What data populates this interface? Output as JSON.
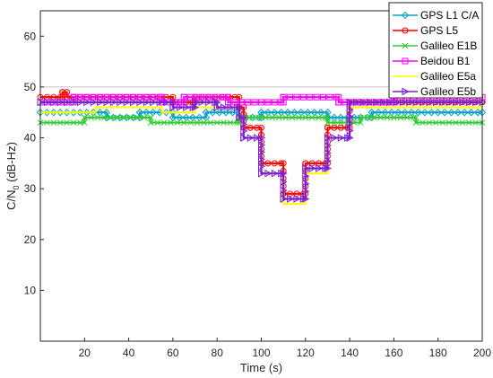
{
  "chart_data": {
    "type": "line",
    "xlabel": "Time (s)",
    "ylabel_main": "C/N",
    "ylabel_sub": "0",
    "ylabel_unit": " (dB-Hz)",
    "xlim": [
      0,
      200
    ],
    "ylim": [
      0,
      65
    ],
    "xticks": [
      20,
      40,
      60,
      80,
      100,
      120,
      140,
      160,
      180,
      200
    ],
    "yticks": [
      10,
      20,
      30,
      40,
      50,
      60
    ],
    "grid": false,
    "legend_position": "top-right",
    "series": [
      {
        "name": "GPS L1 C/A",
        "color": "#0fa3c4",
        "marker": "diamond",
        "points": [
          [
            0,
            45
          ],
          [
            30,
            45
          ],
          [
            30,
            44
          ],
          [
            45,
            44
          ],
          [
            45,
            45
          ],
          [
            60,
            45
          ],
          [
            60,
            44
          ],
          [
            75,
            44
          ],
          [
            75,
            45
          ],
          [
            90,
            45
          ],
          [
            90,
            44
          ],
          [
            100,
            44
          ],
          [
            100,
            45
          ],
          [
            130,
            45
          ],
          [
            130,
            44
          ],
          [
            150,
            44
          ],
          [
            150,
            45
          ],
          [
            200,
            45
          ]
        ]
      },
      {
        "name": "GPS L5",
        "color": "#ff0000",
        "marker": "circle",
        "points": [
          [
            0,
            48
          ],
          [
            10,
            48
          ],
          [
            10,
            49
          ],
          [
            12,
            49
          ],
          [
            12,
            48
          ],
          [
            60,
            48
          ],
          [
            60,
            47
          ],
          [
            70,
            47
          ],
          [
            70,
            48
          ],
          [
            90,
            48
          ],
          [
            90,
            46
          ],
          [
            92,
            46
          ],
          [
            92,
            42
          ],
          [
            100,
            42
          ],
          [
            100,
            35
          ],
          [
            110,
            35
          ],
          [
            110,
            29
          ],
          [
            120,
            29
          ],
          [
            120,
            35
          ],
          [
            130,
            35
          ],
          [
            130,
            42
          ],
          [
            140,
            42
          ],
          [
            140,
            47
          ],
          [
            200,
            47
          ]
        ]
      },
      {
        "name": "Galileo E1B",
        "color": "#33cc33",
        "marker": "x",
        "points": [
          [
            0,
            43
          ],
          [
            20,
            43
          ],
          [
            20,
            44
          ],
          [
            50,
            44
          ],
          [
            50,
            43
          ],
          [
            90,
            43
          ],
          [
            90,
            44
          ],
          [
            130,
            44
          ],
          [
            130,
            43
          ],
          [
            145,
            43
          ],
          [
            145,
            44
          ],
          [
            170,
            44
          ],
          [
            170,
            43
          ],
          [
            200,
            43
          ]
        ]
      },
      {
        "name": "Beidou B1",
        "color": "#ff00ff",
        "marker": "square",
        "points": [
          [
            0,
            47
          ],
          [
            15,
            47
          ],
          [
            15,
            48
          ],
          [
            55,
            48
          ],
          [
            55,
            47
          ],
          [
            65,
            47
          ],
          [
            65,
            48
          ],
          [
            85,
            48
          ],
          [
            85,
            47
          ],
          [
            110,
            47
          ],
          [
            110,
            48
          ],
          [
            135,
            48
          ],
          [
            135,
            47
          ],
          [
            160,
            47
          ],
          [
            160,
            48
          ],
          [
            200,
            48
          ]
        ]
      },
      {
        "name": "Galileo E5a",
        "color": "#ffff00",
        "marker": "none",
        "points": [
          [
            0,
            45
          ],
          [
            25,
            45
          ],
          [
            25,
            46
          ],
          [
            55,
            46
          ],
          [
            55,
            45
          ],
          [
            70,
            45
          ],
          [
            70,
            46
          ],
          [
            90,
            46
          ],
          [
            90,
            44
          ],
          [
            92,
            44
          ],
          [
            92,
            40
          ],
          [
            100,
            40
          ],
          [
            100,
            33
          ],
          [
            110,
            33
          ],
          [
            110,
            27
          ],
          [
            120,
            27
          ],
          [
            120,
            33
          ],
          [
            130,
            33
          ],
          [
            130,
            40
          ],
          [
            140,
            40
          ],
          [
            140,
            46
          ],
          [
            200,
            46
          ]
        ]
      },
      {
        "name": "Galileo E5b",
        "color": "#7b1fd4",
        "marker": "triangle-right",
        "points": [
          [
            0,
            47
          ],
          [
            60,
            47
          ],
          [
            60,
            46
          ],
          [
            70,
            46
          ],
          [
            70,
            47
          ],
          [
            80,
            47
          ],
          [
            80,
            46
          ],
          [
            90,
            46
          ],
          [
            90,
            44
          ],
          [
            92,
            44
          ],
          [
            92,
            40
          ],
          [
            100,
            40
          ],
          [
            100,
            33
          ],
          [
            110,
            33
          ],
          [
            110,
            28
          ],
          [
            120,
            28
          ],
          [
            120,
            34
          ],
          [
            130,
            34
          ],
          [
            130,
            40
          ],
          [
            140,
            40
          ],
          [
            140,
            47
          ],
          [
            200,
            47
          ]
        ]
      }
    ]
  }
}
